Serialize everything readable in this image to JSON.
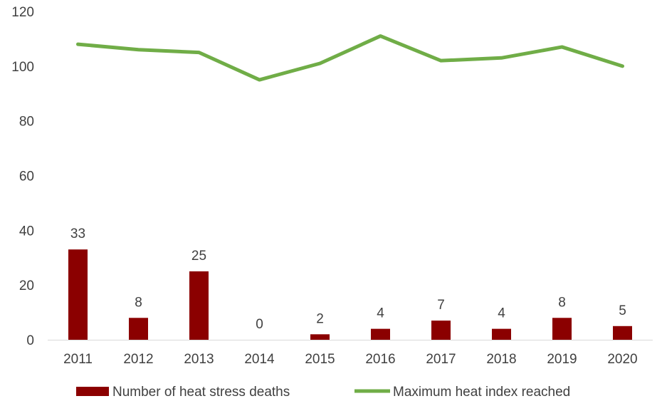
{
  "chart_data": {
    "type": "bar",
    "categories": [
      "2011",
      "2012",
      "2013",
      "2014",
      "2015",
      "2016",
      "2017",
      "2018",
      "2019",
      "2020"
    ],
    "series": [
      {
        "name": "Number of heat stress deaths",
        "kind": "bar",
        "color": "#8B0000",
        "values": [
          33,
          8,
          25,
          0,
          2,
          4,
          7,
          4,
          8,
          5
        ],
        "show_data_labels": true
      },
      {
        "name": "Maximum heat index reached",
        "kind": "line",
        "color": "#70AD47",
        "values": [
          108,
          106,
          105,
          95,
          101,
          111,
          102,
          103,
          107,
          100
        ],
        "show_data_labels": false
      }
    ],
    "ylim": [
      0,
      120
    ],
    "yticks": [
      0,
      20,
      40,
      60,
      80,
      100,
      120
    ],
    "grid": false,
    "legend_position": "bottom",
    "title": "",
    "xlabel": "",
    "ylabel": ""
  }
}
